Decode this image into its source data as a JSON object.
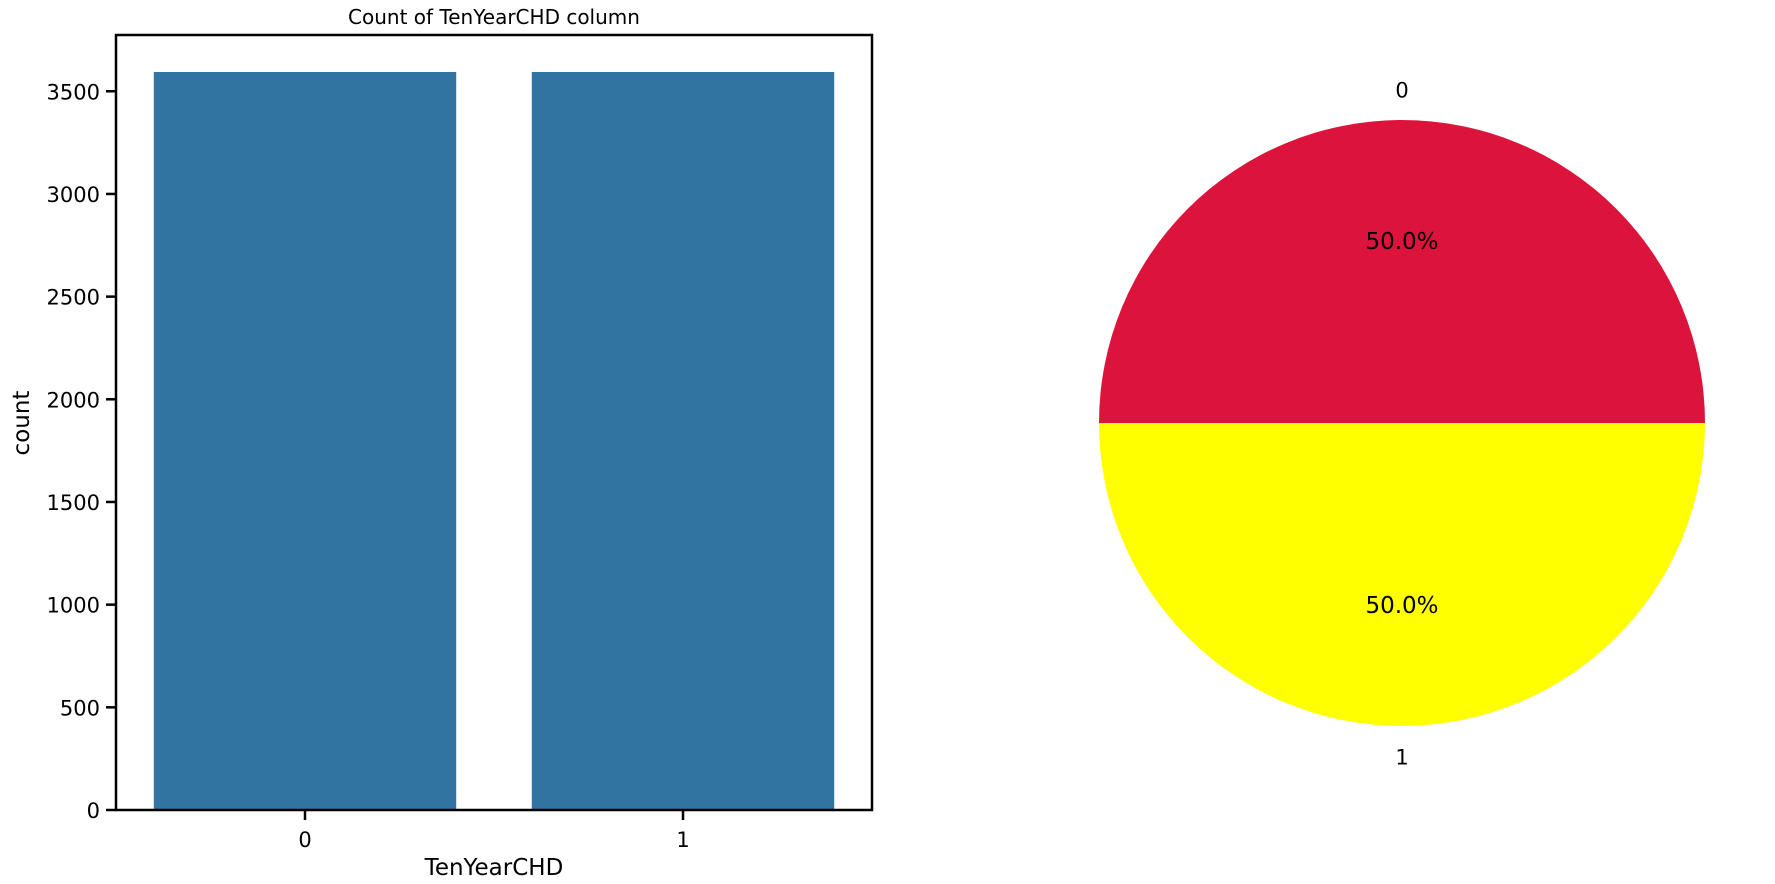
{
  "chart_data": [
    {
      "type": "bar",
      "title": "Count of TenYearCHD column",
      "xlabel": "TenYearCHD",
      "ylabel": "count",
      "categories": [
        "0",
        "1"
      ],
      "values": [
        3594,
        3594
      ],
      "ylim": [
        0,
        3774
      ],
      "yticks": [
        0,
        500,
        1000,
        1500,
        2000,
        2500,
        3000,
        3500
      ],
      "grid": false,
      "color": "#3274a1"
    },
    {
      "type": "pie",
      "labels": [
        "0",
        "1"
      ],
      "values": [
        50.0,
        50.0
      ],
      "autopct": [
        "50.0%",
        "50.0%"
      ],
      "colors": [
        "#dc143c",
        "#ffff00"
      ],
      "startangle_deg": 0
    }
  ]
}
